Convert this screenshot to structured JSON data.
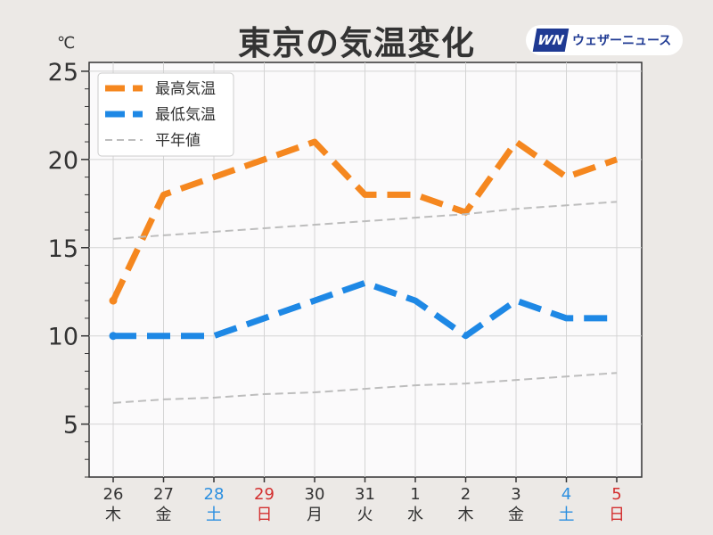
{
  "title": "東京の気温変化",
  "unit": "℃",
  "brand": {
    "logo": "WN",
    "name": "ウェザーニュース"
  },
  "colors": {
    "high": "#f5871f",
    "low": "#1e88e5",
    "normal": "#bdbdbd",
    "weekday": "#333333",
    "saturday": "#2b8fe0",
    "sunday": "#d32f2f"
  },
  "chart_data": {
    "type": "line",
    "title": "東京の気温変化",
    "ylim": [
      2,
      25.5
    ],
    "yticks": [
      5,
      10,
      15,
      20,
      25
    ],
    "grid": true,
    "legend_position": "top-left",
    "x": [
      {
        "num": "26",
        "day": "木",
        "kind": "weekday"
      },
      {
        "num": "27",
        "day": "金",
        "kind": "weekday"
      },
      {
        "num": "28",
        "day": "土",
        "kind": "saturday"
      },
      {
        "num": "29",
        "day": "日",
        "kind": "sunday"
      },
      {
        "num": "30",
        "day": "月",
        "kind": "weekday"
      },
      {
        "num": "31",
        "day": "火",
        "kind": "weekday"
      },
      {
        "num": "1",
        "day": "水",
        "kind": "weekday"
      },
      {
        "num": "2",
        "day": "木",
        "kind": "weekday"
      },
      {
        "num": "3",
        "day": "金",
        "kind": "weekday"
      },
      {
        "num": "4",
        "day": "土",
        "kind": "saturday"
      },
      {
        "num": "5",
        "day": "日",
        "kind": "sunday"
      }
    ],
    "series": [
      {
        "name": "最高気温",
        "values": [
          12,
          18,
          19,
          20,
          21,
          18,
          18,
          17,
          21,
          19,
          20
        ],
        "color": "#f5871f",
        "style": "dashed"
      },
      {
        "name": "最低気温",
        "values": [
          10,
          10,
          10,
          11,
          12,
          13,
          12,
          10,
          12,
          11,
          11
        ],
        "color": "#1e88e5",
        "style": "dashed"
      },
      {
        "name": "平年値",
        "values": [
          15.5,
          15.7,
          15.9,
          16.1,
          16.3,
          16.5,
          16.7,
          16.9,
          17.2,
          17.4,
          17.6
        ],
        "color": "#bdbdbd",
        "style": "dashed-thin"
      },
      {
        "name": "",
        "values": [
          6.2,
          6.4,
          6.5,
          6.7,
          6.8,
          7.0,
          7.2,
          7.3,
          7.5,
          7.7,
          7.9
        ],
        "color": "#bdbdbd",
        "style": "dashed-thin"
      }
    ]
  }
}
